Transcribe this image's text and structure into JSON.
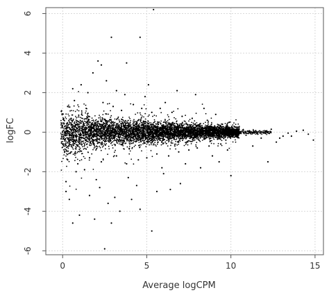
{
  "chart_data": {
    "type": "scatter",
    "title": "",
    "xlabel": "Average logCPM",
    "ylabel": "logFC",
    "xlim": [
      -1,
      15.5
    ],
    "ylim": [
      -6.2,
      6.3
    ],
    "xticks": [
      0,
      5,
      10,
      15
    ],
    "yticks": [
      -6,
      -4,
      -2,
      0,
      2,
      4,
      6
    ],
    "grid": true,
    "colors": {
      "points": "#000000",
      "grid": "#d9d9d9",
      "frame": "#555555",
      "text": "#333333"
    },
    "series": [
      {
        "values": [
          [
            5.4,
            6.2
          ],
          [
            4.6,
            4.8
          ],
          [
            2.9,
            4.8
          ],
          [
            3.8,
            3.5
          ],
          [
            2.1,
            3.6
          ],
          [
            2.3,
            3.4
          ],
          [
            1.8,
            3.0
          ],
          [
            6.8,
            2.1
          ],
          [
            5.1,
            2.4
          ],
          [
            2.6,
            2.6
          ],
          [
            1.1,
            2.4
          ],
          [
            7.9,
            1.9
          ],
          [
            3.2,
            2.1
          ],
          [
            4.9,
            1.8
          ],
          [
            0.6,
            2.2
          ],
          [
            9.1,
            0.9
          ],
          [
            1.5,
            2.0
          ],
          [
            6.1,
            1.5
          ],
          [
            8.4,
            1.2
          ],
          [
            3.7,
            1.9
          ],
          [
            2.2,
            -2.8
          ],
          [
            1.6,
            -3.2
          ],
          [
            0.4,
            -3.4
          ],
          [
            3.1,
            -3.3
          ],
          [
            2.7,
            -3.6
          ],
          [
            1.0,
            -4.2
          ],
          [
            0.6,
            -4.6
          ],
          [
            3.4,
            -4.0
          ],
          [
            5.6,
            -3.0
          ],
          [
            4.6,
            -3.9
          ],
          [
            2.5,
            -5.9
          ],
          [
            5.3,
            -5.0
          ],
          [
            7.0,
            -2.6
          ],
          [
            6.4,
            -2.9
          ],
          [
            8.2,
            -1.8
          ],
          [
            10.0,
            -2.2
          ],
          [
            12.2,
            -1.5
          ],
          [
            0.2,
            -2.5
          ],
          [
            0.2,
            -3.0
          ],
          [
            1.3,
            -1.9
          ],
          [
            2.0,
            -2.4
          ],
          [
            3.9,
            -2.3
          ],
          [
            4.4,
            -2.7
          ],
          [
            6.0,
            -2.1
          ],
          [
            7.3,
            -1.6
          ],
          [
            8.9,
            -1.2
          ],
          [
            9.3,
            -1.5
          ],
          [
            11.3,
            -0.7
          ],
          [
            12.7,
            -0.5
          ],
          [
            1.9,
            -4.4
          ],
          [
            4.1,
            -3.4
          ],
          [
            2.9,
            -4.6
          ],
          [
            0.8,
            -2.0
          ],
          [
            5.9,
            -1.8
          ],
          [
            9.8,
            -0.9
          ],
          [
            12.9,
            -0.3
          ],
          [
            10.4,
            0.25
          ],
          [
            10.7,
            0.1
          ],
          [
            11.1,
            0.0
          ],
          [
            11.6,
            -0.1
          ],
          [
            12.1,
            0.05
          ],
          [
            13.4,
            -0.05
          ],
          [
            13.9,
            0.05
          ],
          [
            14.3,
            0.1
          ],
          [
            14.6,
            -0.1
          ],
          [
            14.9,
            -0.4
          ],
          [
            10.2,
            0.0
          ],
          [
            10.9,
            -0.15
          ],
          [
            11.8,
            -0.3
          ],
          [
            13.1,
            -0.2
          ],
          [
            12.4,
            0.15
          ],
          [
            13.6,
            -0.2
          ],
          [
            0.3,
            1.3
          ],
          [
            0.7,
            1.6
          ],
          [
            1.4,
            1.2
          ],
          [
            2.4,
            1.5
          ],
          [
            3.0,
            1.3
          ],
          [
            3.5,
            1.1
          ],
          [
            4.2,
            1.4
          ],
          [
            4.7,
            1.2
          ],
          [
            5.3,
            1.0
          ],
          [
            5.8,
            1.2
          ],
          [
            6.5,
            1.0
          ],
          [
            7.1,
            0.8
          ],
          [
            7.7,
            0.7
          ],
          [
            8.6,
            0.6
          ],
          [
            9.5,
            0.4
          ],
          [
            9.9,
            0.5
          ],
          [
            0.3,
            -1.4
          ],
          [
            0.9,
            -1.6
          ],
          [
            1.6,
            -1.3
          ],
          [
            2.3,
            -1.5
          ],
          [
            3.2,
            -1.2
          ],
          [
            3.8,
            -1.6
          ],
          [
            4.5,
            -1.4
          ],
          [
            5.0,
            -1.3
          ],
          [
            5.6,
            -1.1
          ],
          [
            6.3,
            -1.2
          ],
          [
            6.9,
            -1.0
          ],
          [
            7.5,
            -0.9
          ],
          [
            8.0,
            -0.8
          ],
          [
            8.7,
            -0.7
          ],
          [
            9.4,
            -0.6
          ],
          [
            9.7,
            -0.4
          ]
        ]
      }
    ]
  }
}
